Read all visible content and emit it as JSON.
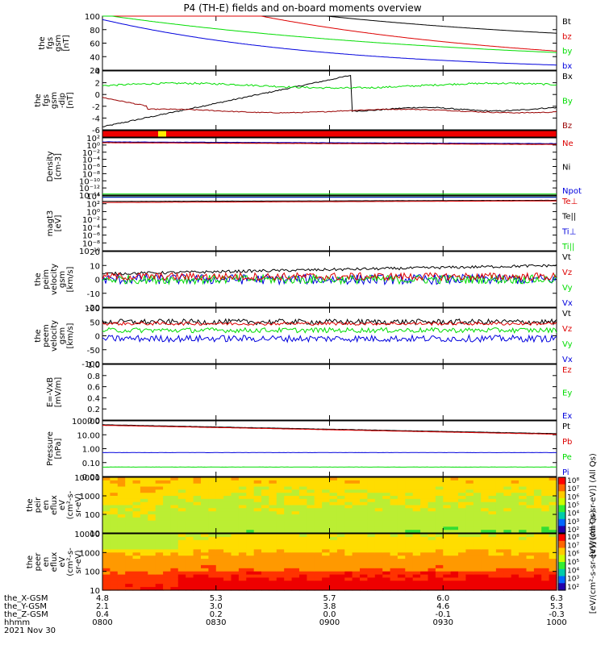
{
  "title": "P4 (TH-E) fields and on-board moments overview",
  "colors": {
    "black": "#000000",
    "red": "#dd0000",
    "darkred": "#990000",
    "green": "#00dd00",
    "blue": "#0000dd"
  },
  "footer": {
    "rows": [
      {
        "label": "the_X-GSM",
        "values": [
          "4.8",
          "5.3",
          "5.7",
          "6.0",
          "6.3"
        ]
      },
      {
        "label": "the_Y-GSM",
        "values": [
          "2.1",
          "3.0",
          "3.8",
          "4.6",
          "5.3"
        ]
      },
      {
        "label": "the_Z-GSM",
        "values": [
          "0.4",
          "0.2",
          "0.0",
          "-0.1",
          "-0.3"
        ]
      },
      {
        "label": "hhmm",
        "values": [
          "0800",
          "0830",
          "0900",
          "0930",
          "1000"
        ]
      }
    ],
    "date": "2021 Nov 30"
  },
  "colorbars": [
    {
      "ticks": [
        "10⁸",
        "10⁷",
        "10⁶",
        "10⁵",
        "10⁴",
        "10³",
        "10²"
      ],
      "label": "[eV/(cm²-s-sr-eV)] (All Qs)"
    },
    {
      "ticks": [
        "10⁸",
        "10⁷",
        "10⁶",
        "10⁵",
        "10⁴",
        "10³",
        "10²"
      ],
      "label": "[eV/(cm²-s-sr-eV)] (All Qs)"
    }
  ],
  "chart_data": [
    {
      "type": "line",
      "ylabel": [
        "the",
        "fgs",
        "gsm",
        "[nT]"
      ],
      "ylim": [
        20,
        100
      ],
      "yticks": [
        "100",
        "80",
        "60",
        "40",
        "20"
      ],
      "series": [
        {
          "name": "Bt",
          "color": "#000000"
        },
        {
          "name": "bz",
          "color": "#dd0000"
        },
        {
          "name": "by",
          "color": "#00dd00"
        },
        {
          "name": "bx",
          "color": "#0000dd"
        }
      ]
    },
    {
      "type": "line",
      "ylabel": [
        "the",
        "fgs",
        "gsm",
        "-dip",
        "[nT]"
      ],
      "ylim": [
        -6,
        4
      ],
      "yticks": [
        "4",
        "2",
        "0",
        "-2",
        "-4",
        "-6"
      ],
      "series": [
        {
          "name": "Bx",
          "color": "#000000"
        },
        {
          "name": "By",
          "color": "#00dd00"
        },
        {
          "name": "Bz",
          "color": "#990000"
        }
      ]
    },
    {
      "type": "line",
      "ylabel": [
        "Density",
        "[cm-3]"
      ],
      "ylim": [
        "10⁻¹⁴",
        "10²"
      ],
      "yticks": [
        "10²",
        "10⁰",
        "10⁻²",
        "10⁻⁴",
        "10⁻⁶",
        "10⁻⁸",
        "10⁻¹⁰",
        "10⁻¹²",
        "10⁻¹⁴"
      ],
      "series": [
        {
          "name": "Ne",
          "color": "#dd0000"
        },
        {
          "name": "Ni",
          "color": "#000000"
        },
        {
          "name": "Npot",
          "color": "#0000dd"
        }
      ]
    },
    {
      "type": "line",
      "ylabel": [
        "magt3",
        "[eV]"
      ],
      "ylim": [
        "10⁻¹⁰",
        "10⁴"
      ],
      "yticks": [
        "10⁴",
        "10²",
        "10⁰",
        "10⁻²",
        "10⁻⁴",
        "10⁻⁶",
        "10⁻⁸",
        "10⁻¹⁰"
      ],
      "series": [
        {
          "name": "Te⊥",
          "color": "#dd0000"
        },
        {
          "name": "Te||",
          "color": "#000000"
        },
        {
          "name": "Ti⊥",
          "color": "#0000dd"
        },
        {
          "name": "Ti||",
          "color": "#00dd00"
        }
      ]
    },
    {
      "type": "line",
      "ylabel": [
        "the",
        "peim",
        "velocity",
        "gsm",
        "[km/s]"
      ],
      "ylim": [
        -20,
        20
      ],
      "yticks": [
        "20",
        "10",
        "0",
        "-10",
        "-20"
      ],
      "series": [
        {
          "name": "Vt",
          "color": "#000000"
        },
        {
          "name": "Vz",
          "color": "#dd0000"
        },
        {
          "name": "Vy",
          "color": "#00dd00"
        },
        {
          "name": "Vx",
          "color": "#0000dd"
        }
      ]
    },
    {
      "type": "line",
      "ylabel": [
        "the",
        "peem",
        "velocity",
        "gsm",
        "[km/s]"
      ],
      "ylim": [
        -100,
        100
      ],
      "yticks": [
        "100",
        "50",
        "0",
        "-50",
        "-100"
      ],
      "series": [
        {
          "name": "Vt",
          "color": "#000000"
        },
        {
          "name": "Vz",
          "color": "#dd0000"
        },
        {
          "name": "Vy",
          "color": "#00dd00"
        },
        {
          "name": "Vx",
          "color": "#0000dd"
        }
      ]
    },
    {
      "type": "line",
      "ylabel": [
        "E=-VxB",
        "[mV/m]"
      ],
      "ylim": [
        0,
        1
      ],
      "yticks": [
        "1.0",
        "0.8",
        "0.6",
        "0.4",
        "0.2",
        "0.0"
      ],
      "series": [
        {
          "name": "Ez",
          "color": "#dd0000"
        },
        {
          "name": "Ey",
          "color": "#00dd00"
        },
        {
          "name": "Ex",
          "color": "#0000dd"
        }
      ]
    },
    {
      "type": "line",
      "ylabel": [
        "Pressure",
        "[nPa]"
      ],
      "ylim": [
        0.01,
        100
      ],
      "yticks": [
        "100.00",
        "10.00",
        "1.00",
        "0.10",
        "0.01"
      ],
      "series": [
        {
          "name": "Pt",
          "color": "#000000"
        },
        {
          "name": "Pb",
          "color": "#dd0000"
        },
        {
          "name": "Pe",
          "color": "#00dd00"
        },
        {
          "name": "Pi",
          "color": "#0000dd"
        }
      ]
    },
    {
      "type": "heatmap",
      "ylabel": [
        "the",
        "peir",
        "en",
        "eflux",
        "eV",
        "(cm²-s-",
        "sr-eV)"
      ],
      "ylim": [
        10,
        10000
      ],
      "yticks": [
        "10000",
        "1000",
        "100",
        "10"
      ],
      "series": []
    },
    {
      "type": "heatmap",
      "ylabel": [
        "the",
        "peer",
        "en",
        "eflux",
        "eV",
        "(cm²-s-",
        "sr-eV)"
      ],
      "ylim": [
        10,
        10000
      ],
      "yticks": [
        "10000",
        "1000",
        "100",
        "10"
      ],
      "series": []
    }
  ]
}
